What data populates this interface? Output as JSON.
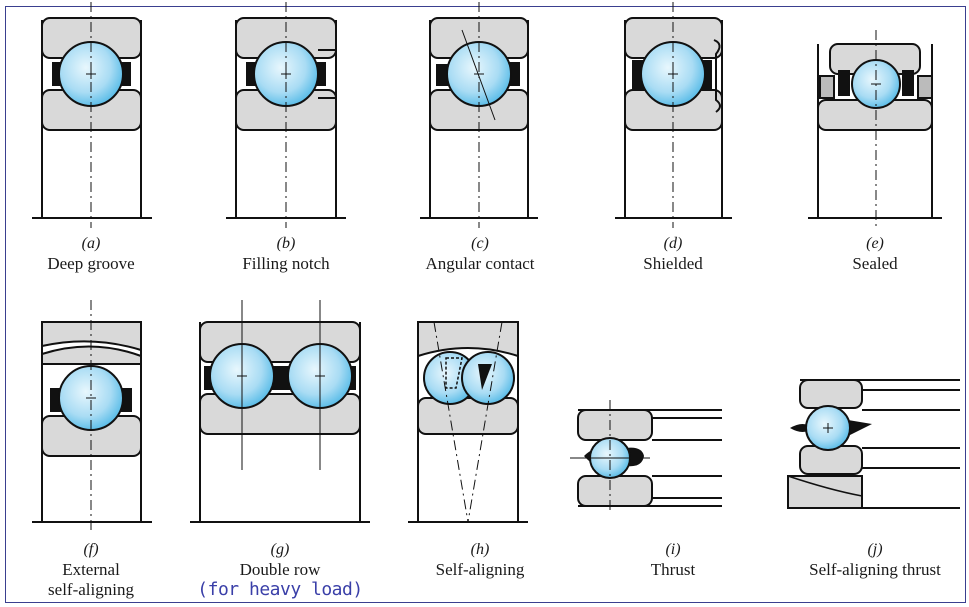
{
  "figures": [
    {
      "id": "a",
      "letter": "(a)",
      "name": "Deep groove"
    },
    {
      "id": "b",
      "letter": "(b)",
      "name": "Filling notch"
    },
    {
      "id": "c",
      "letter": "(c)",
      "name": "Angular contact"
    },
    {
      "id": "d",
      "letter": "(d)",
      "name": "Shielded"
    },
    {
      "id": "e",
      "letter": "(e)",
      "name": "Sealed"
    },
    {
      "id": "f",
      "letter": "(f)",
      "name": "External",
      "name2": "self-aligning"
    },
    {
      "id": "g",
      "letter": "(g)",
      "name": "Double row",
      "note": "(for heavy load)"
    },
    {
      "id": "h",
      "letter": "(h)",
      "name": "Self-aligning"
    },
    {
      "id": "i",
      "letter": "(i)",
      "name": "Thrust"
    },
    {
      "id": "j",
      "letter": "(j)",
      "name": "Self-aligning thrust"
    }
  ],
  "colors": {
    "race_fill": "#d9d9d9",
    "ball_center": "#e8f7fd",
    "ball_edge": "#4fb8e6",
    "separator": "#111111",
    "outline": "#111111",
    "frame": "#3a3f8f",
    "note_text": "#3a3fa8"
  }
}
